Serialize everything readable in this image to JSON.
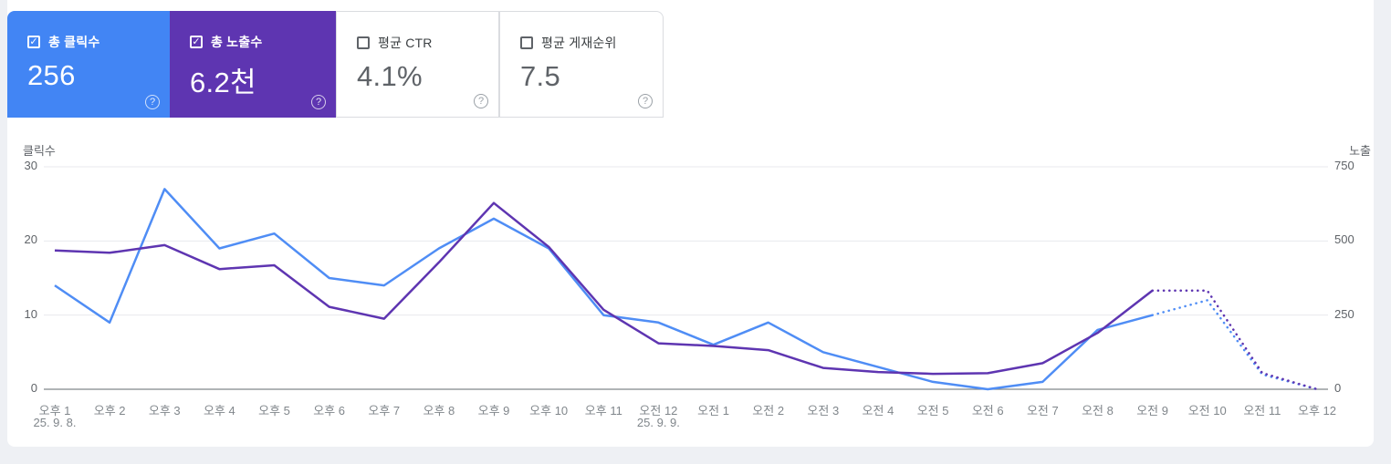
{
  "cards": [
    {
      "label": "총 클릭수",
      "value": "256",
      "checked": true,
      "bg": "#4285f4"
    },
    {
      "label": "총 노출수",
      "value": "6.2천",
      "checked": true,
      "bg": "#5e35b1"
    },
    {
      "label": "평균 CTR",
      "value": "4.1%",
      "checked": false,
      "bg": "#ffffff"
    },
    {
      "label": "평균 게재순위",
      "value": "7.5",
      "checked": false,
      "bg": "#ffffff"
    }
  ],
  "checkmark": "✓",
  "help_glyph": "?",
  "chart_data": {
    "type": "line",
    "x_labels": [
      "오후 1",
      "오후 2",
      "오후 3",
      "오후 4",
      "오후 5",
      "오후 6",
      "오후 7",
      "오후 8",
      "오후 9",
      "오후 10",
      "오후 11",
      "오전 12",
      "오전 1",
      "오전 2",
      "오전 3",
      "오전 4",
      "오전 5",
      "오전 6",
      "오전 7",
      "오전 8",
      "오전 9",
      "오전 10",
      "오전 11",
      "오후 12"
    ],
    "x_sublabels": {
      "0": "25. 9. 8.",
      "11": "25. 9. 9."
    },
    "left_axis": {
      "title": "클릭수",
      "ticks": [
        30,
        20,
        10,
        0
      ],
      "max": 30
    },
    "right_axis": {
      "title": "노출",
      "ticks": [
        750,
        500,
        250,
        0
      ],
      "max": 750
    },
    "grid": true,
    "dotted_from_index": 20,
    "series": [
      {
        "name": "클릭수",
        "axis": "left",
        "color": "#4f8df5",
        "values": [
          14,
          9,
          27,
          19,
          21,
          15,
          14,
          19,
          23,
          19,
          10,
          9,
          6,
          9,
          5,
          3,
          1,
          0,
          1,
          8,
          10,
          12,
          2,
          0
        ]
      },
      {
        "name": "노출수",
        "axis": "right",
        "color": "#5e35b1",
        "values": [
          468,
          460,
          486,
          405,
          418,
          278,
          238,
          428,
          628,
          480,
          268,
          155,
          146,
          132,
          72,
          58,
          52,
          54,
          88,
          190,
          333,
          333,
          55,
          0
        ]
      }
    ],
    "colors": {
      "grid": "#e8eaed",
      "zero_line": "#80868b",
      "panel_bg": "#ffffff",
      "page_bg": "#eef0f4"
    }
  }
}
